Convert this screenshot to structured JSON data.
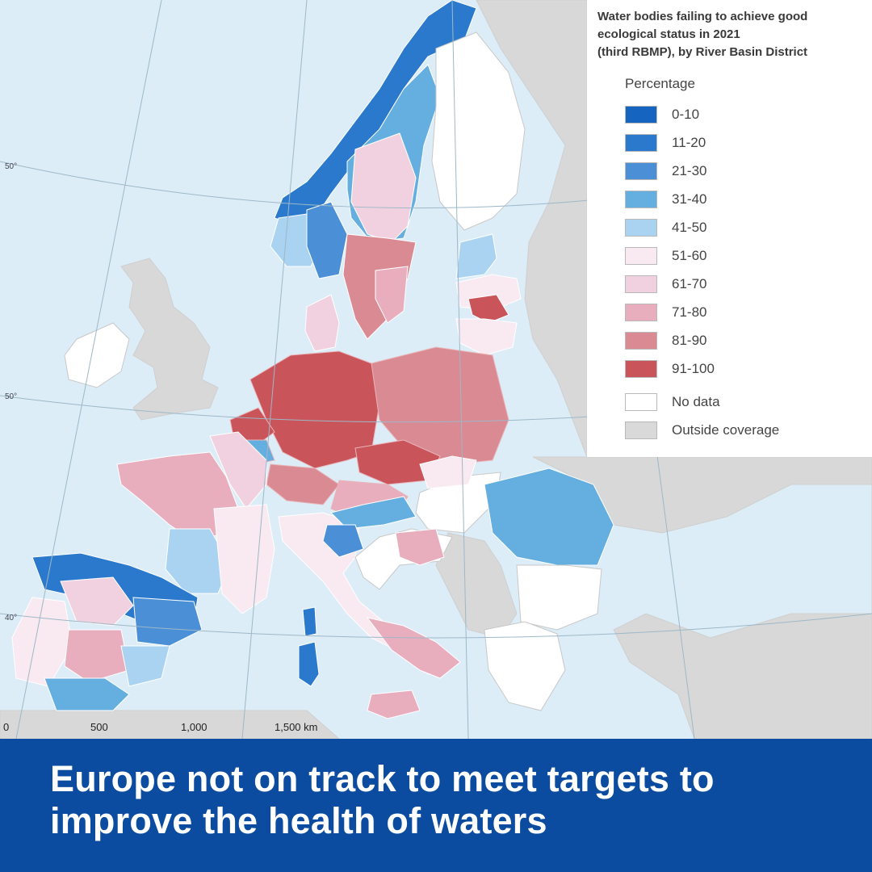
{
  "legend": {
    "title_lines": [
      "Water bodies failing to achieve good",
      "ecological status in 2021",
      "(third RBMP), by River Basin District"
    ],
    "subtitle": "Percentage",
    "classes": [
      {
        "label": "0-10",
        "color": "#1565c0"
      },
      {
        "label": "11-20",
        "color": "#2b79cc"
      },
      {
        "label": "21-30",
        "color": "#4b8fd6"
      },
      {
        "label": "31-40",
        "color": "#65aee0"
      },
      {
        "label": "41-50",
        "color": "#a9d3f0"
      },
      {
        "label": "51-60",
        "color": "#f9e9f1"
      },
      {
        "label": "61-70",
        "color": "#f1d1df"
      },
      {
        "label": "71-80",
        "color": "#e9aebe"
      },
      {
        "label": "81-90",
        "color": "#da8a93"
      },
      {
        "label": "91-100",
        "color": "#c9545a"
      }
    ],
    "extra": [
      {
        "label": "No data",
        "color": "#ffffff"
      },
      {
        "label": "Outside coverage",
        "color": "#d9d9d9"
      }
    ]
  },
  "graticule_labels": [
    "50°",
    "50°",
    "40°"
  ],
  "scale": {
    "ticks": [
      "0",
      "500",
      "1,000",
      "1,500 km"
    ]
  },
  "headline": [
    "Europe not on track to meet targets to",
    "improve the health of waters"
  ]
}
